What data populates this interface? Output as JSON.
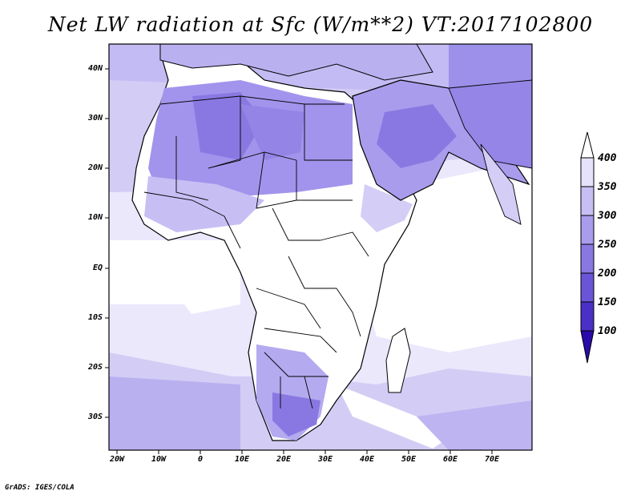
{
  "title": "Net LW radiation at Sfc (W/m**2) VT:2017102800",
  "credit": "GrADS: IGES/COLA",
  "lat_ticks": [
    "40N",
    "30N",
    "20N",
    "10N",
    "EQ",
    "10S",
    "20S",
    "30S"
  ],
  "lon_ticks": [
    "20W",
    "10W",
    "0",
    "10E",
    "20E",
    "30E",
    "40E",
    "50E",
    "60E",
    "70E"
  ],
  "colorbar": {
    "levels": [
      "100",
      "150",
      "200",
      "250",
      "300",
      "350",
      "400"
    ],
    "colors": [
      "#2a0aa8",
      "#4b30c8",
      "#6a55d8",
      "#8a78e2",
      "#a99cec",
      "#c7bff4",
      "#e6e2fb",
      "#ffffff"
    ]
  },
  "map": {
    "ocean_color": "#d9d4f6",
    "region": "Africa, Middle East and Indian Ocean"
  }
}
